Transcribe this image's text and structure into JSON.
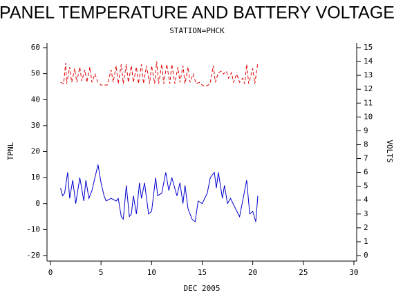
{
  "chart_data": {
    "type": "line",
    "title": "PANEL TEMPERATURE AND BATTERY VOLTAGE",
    "subtitle": "STATION=PHCK",
    "xlabel": "DEC 2005",
    "ylabel": "TPNL",
    "y2label": "VOLTS",
    "xlim": [
      0,
      30
    ],
    "xticks": [
      0,
      5,
      10,
      15,
      20,
      25,
      30
    ],
    "ylim": [
      -20,
      60
    ],
    "yticks": [
      -20,
      -10,
      0,
      10,
      20,
      30,
      40,
      50,
      60
    ],
    "y2lim": [
      0,
      15
    ],
    "y2ticks": [
      0,
      1,
      2,
      3,
      4,
      5,
      6,
      7,
      8,
      9,
      10,
      11,
      12,
      13,
      14,
      15
    ],
    "series": [
      {
        "color": "#0000cc",
        "dashed": false,
        "x": [
          1,
          1.2,
          1.4,
          1.7,
          1.9,
          2.2,
          2.5,
          2.9,
          3.3,
          3.5,
          3.8,
          4.1,
          4.4,
          4.7,
          5,
          5.3,
          5.5,
          6,
          6.5,
          6.7,
          7,
          7.2,
          7.5,
          7.8,
          8,
          8.2,
          8.5,
          8.8,
          9,
          9.3,
          9.7,
          10,
          10.4,
          10.6,
          11,
          11.4,
          11.7,
          12,
          12.5,
          12.8,
          13.1,
          13.3,
          13.6,
          14,
          14.3,
          14.6,
          15,
          15.5,
          15.8,
          16.2,
          16.4,
          16.6,
          17,
          17.2,
          17.5,
          17.8,
          18.3,
          18.7,
          19,
          19.4,
          19.7,
          20,
          20.3,
          20.5
        ],
        "values": [
          6,
          3,
          4,
          12,
          2,
          9,
          0,
          10,
          1,
          9,
          2,
          5,
          10,
          15,
          8,
          3,
          1,
          2,
          1,
          2,
          -5,
          -6,
          7,
          -5,
          -4,
          3,
          -4,
          8,
          2,
          8,
          -4,
          -3,
          10,
          3,
          4,
          12,
          5,
          10,
          3,
          8,
          0,
          7,
          -2,
          -6,
          -7,
          1,
          0,
          4,
          10,
          12,
          6,
          12,
          2,
          7,
          0,
          2,
          -2,
          -5,
          1,
          9,
          -4,
          -3,
          -7,
          3
        ]
      },
      {
        "color": "#e00000",
        "dashed": true,
        "axis": "y2",
        "x": [
          1,
          1.3,
          1.5,
          1.6,
          1.9,
          2.1,
          2.4,
          2.6,
          2.9,
          3.1,
          3.4,
          3.6,
          3.9,
          4.1,
          4.4,
          4.7,
          5,
          5.3,
          5.6,
          6,
          6.2,
          6.5,
          6.7,
          7,
          7.2,
          7.5,
          7.7,
          8,
          8.2,
          8.5,
          8.7,
          9,
          9.2,
          9.5,
          9.8,
          10,
          10.3,
          10.5,
          10.7,
          11,
          11.2,
          11.5,
          11.8,
          12,
          12.3,
          12.6,
          12.8,
          13.1,
          13.3,
          13.6,
          13.8,
          14.1,
          14.4,
          14.7,
          15,
          15.3,
          15.6,
          15.8,
          16.1,
          16.3,
          16.6,
          16.9,
          17.1,
          17.4,
          17.6,
          17.9,
          18.1,
          18.4,
          18.7,
          19,
          19.2,
          19.4,
          19.6,
          20,
          20.2,
          20.5
        ],
        "values": [
          12.5,
          12.4,
          13.9,
          12.4,
          13.6,
          12.5,
          13.5,
          12.5,
          13.6,
          12.6,
          13.4,
          12.5,
          13.6,
          12.5,
          13.1,
          12.5,
          12.3,
          12.3,
          12.3,
          13.4,
          12.5,
          13.7,
          12.4,
          13.8,
          12.4,
          13.8,
          12.5,
          13.7,
          12.5,
          13.6,
          12.4,
          13.8,
          12.4,
          13.7,
          12.4,
          13.7,
          12.4,
          14,
          12.4,
          13.8,
          12.4,
          13.8,
          12.4,
          13.8,
          12.4,
          13.6,
          12.5,
          13.7,
          12.4,
          13.6,
          12.5,
          13.1,
          12.4,
          12.5,
          12.3,
          12.2,
          12.3,
          12.5,
          13.7,
          12.5,
          13.2,
          13.3,
          13.1,
          13.3,
          12.8,
          13.2,
          12.5,
          13.1,
          12.5,
          12.8,
          12.4,
          13.8,
          12.4,
          13.5,
          12.4,
          13.9
        ]
      }
    ]
  }
}
